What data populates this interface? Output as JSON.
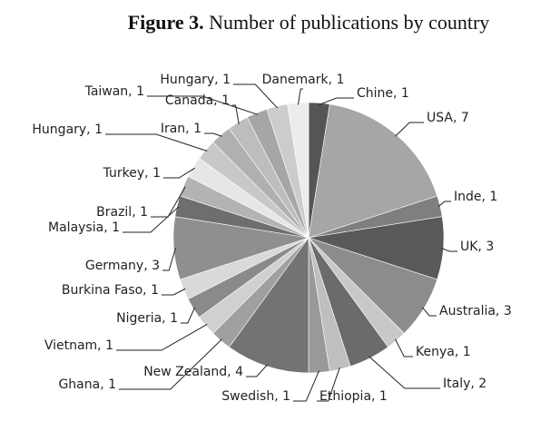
{
  "chart_data": {
    "type": "pie",
    "figure_label": "Figure 3.",
    "title": "Number of publications by country",
    "values": [
      1,
      7,
      1,
      3,
      3,
      1,
      2,
      1,
      1,
      4,
      1,
      1,
      1,
      1,
      3,
      1,
      1,
      1,
      1,
      1,
      1,
      1,
      1,
      1
    ],
    "value_labels": [
      "Chine, 1",
      "USA, 7",
      "Inde, 1",
      "UK, 3",
      "Australia, 3",
      "Kenya, 1",
      "Italy, 2",
      "Ethiopia, 1",
      "Swedish, 1",
      "New Zealand, 4",
      "Ghana, 1",
      "Vietnam, 1",
      "Nigeria, 1",
      "Burkina Faso, 1",
      "Germany, 3",
      "Malaysia, 1",
      "Brazil, 1",
      "Turkey, 1",
      "Hungary, 1",
      "Iran, 1",
      "Canada, 1",
      "Taiwan, 1",
      "Hungary, 1",
      "Danemark, 1"
    ],
    "colors": [
      "#555555",
      "#a6a6a6",
      "#7f7f7f",
      "#595959",
      "#8c8c8c",
      "#c8c8c8",
      "#6b6b6b",
      "#bfbfbf",
      "#999999",
      "#737373",
      "#a0a0a0",
      "#d0d0d0",
      "#8a8a8a",
      "#d9d9d9",
      "#8f8f8f",
      "#6e6e6e",
      "#b3b3b3",
      "#e6e6e6",
      "#c8c8c8",
      "#b0b0b0",
      "#bdbdbd",
      "#a6a6a6",
      "#cccccc",
      "#ececec"
    ]
  }
}
